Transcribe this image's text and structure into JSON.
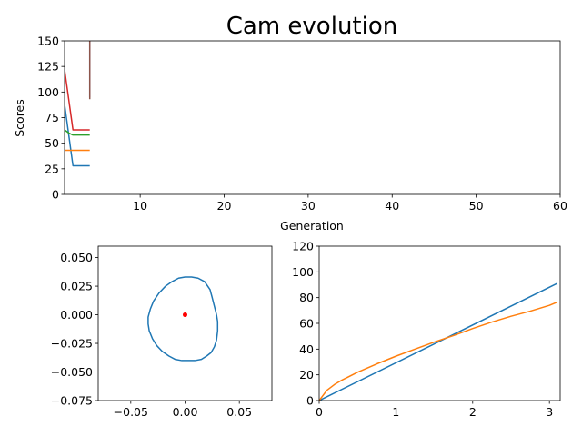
{
  "chart_data": [
    {
      "type": "line",
      "title": "Cam evolution",
      "xlabel": "Generation",
      "ylabel": "Scores",
      "xlim": [
        1,
        60
      ],
      "ylim": [
        0,
        150
      ],
      "xticks": [
        10,
        20,
        30,
        40,
        50,
        60
      ],
      "yticks": [
        0,
        25,
        50,
        75,
        100,
        125,
        150
      ],
      "grid": false,
      "legend": "none",
      "series": [
        {
          "color": "#1f77b4",
          "x": [
            1,
            2,
            3,
            4
          ],
          "y": [
            88,
            28,
            28,
            28
          ]
        },
        {
          "color": "#ff7f0e",
          "x": [
            1,
            2,
            3,
            4
          ],
          "y": [
            43,
            43,
            43,
            43
          ]
        },
        {
          "color": "#2ca02c",
          "x": [
            1,
            1.5,
            2,
            3,
            4
          ],
          "y": [
            63,
            60,
            58,
            58,
            58
          ]
        },
        {
          "color": "#d62728",
          "x": [
            1,
            2,
            3,
            4
          ],
          "y": [
            122,
            63,
            63,
            63
          ]
        },
        {
          "color": "#9467bd",
          "x": [
            4,
            4
          ],
          "y": [
            150,
            95
          ]
        },
        {
          "color": "#8c564b",
          "x": [
            4,
            4
          ],
          "y": [
            150,
            93
          ]
        }
      ]
    },
    {
      "type": "line",
      "title": "",
      "xlabel": "",
      "ylabel": "",
      "xlim": [
        -0.08,
        0.08
      ],
      "ylim": [
        -0.075,
        0.06
      ],
      "xticks": [
        -0.05,
        0.0,
        0.05
      ],
      "xtick_labels": [
        "−0.05",
        "0.00",
        "0.05"
      ],
      "yticks": [
        -0.075,
        -0.05,
        -0.025,
        0.0,
        0.025,
        0.05
      ],
      "ytick_labels": [
        "−0.075",
        "−0.050",
        "−0.025",
        "0.000",
        "0.025",
        "0.050"
      ],
      "grid": false,
      "series": [
        {
          "color": "#1f77b4",
          "closed": false,
          "x": [
            0.029,
            0.025,
            0.023,
            0.018,
            0.012,
            0.006,
            0.0,
            -0.006,
            -0.012,
            -0.018,
            -0.024,
            -0.029,
            -0.032,
            -0.034,
            -0.034,
            -0.033,
            -0.03,
            -0.026,
            -0.021,
            -0.015,
            -0.009,
            -0.003,
            0.003,
            0.009,
            0.015,
            0.02,
            0.024,
            0.027,
            0.029,
            0.03,
            0.03,
            0.029
          ],
          "y": [
            0.0,
            0.015,
            0.022,
            0.029,
            0.032,
            0.033,
            0.033,
            0.032,
            0.029,
            0.025,
            0.019,
            0.012,
            0.005,
            -0.002,
            -0.008,
            -0.014,
            -0.021,
            -0.027,
            -0.032,
            -0.036,
            -0.039,
            -0.04,
            -0.04,
            -0.04,
            -0.039,
            -0.036,
            -0.033,
            -0.028,
            -0.022,
            -0.014,
            -0.006,
            0.0
          ]
        }
      ],
      "markers": [
        {
          "color": "#ff0000",
          "x": 0.0,
          "y": 0.0
        }
      ]
    },
    {
      "type": "line",
      "title": "",
      "xlabel": "",
      "ylabel": "",
      "xlim": [
        0,
        3.14
      ],
      "ylim": [
        0,
        120
      ],
      "xticks": [
        0,
        1,
        2,
        3
      ],
      "yticks": [
        0,
        20,
        40,
        60,
        80,
        100,
        120
      ],
      "grid": false,
      "series": [
        {
          "color": "#1f77b4",
          "x": [
            0,
            3.1
          ],
          "y": [
            0,
            91
          ]
        },
        {
          "color": "#ff7f0e",
          "x": [
            0,
            0.05,
            0.1,
            0.2,
            0.3,
            0.5,
            0.75,
            1.0,
            1.25,
            1.5,
            1.75,
            2.0,
            2.25,
            2.5,
            2.75,
            3.0,
            3.1
          ],
          "y": [
            0,
            4,
            8,
            12.5,
            16,
            22,
            28.5,
            34.5,
            40,
            45.5,
            50.5,
            56,
            61,
            65.5,
            69.5,
            74,
            76.5
          ]
        }
      ]
    }
  ]
}
